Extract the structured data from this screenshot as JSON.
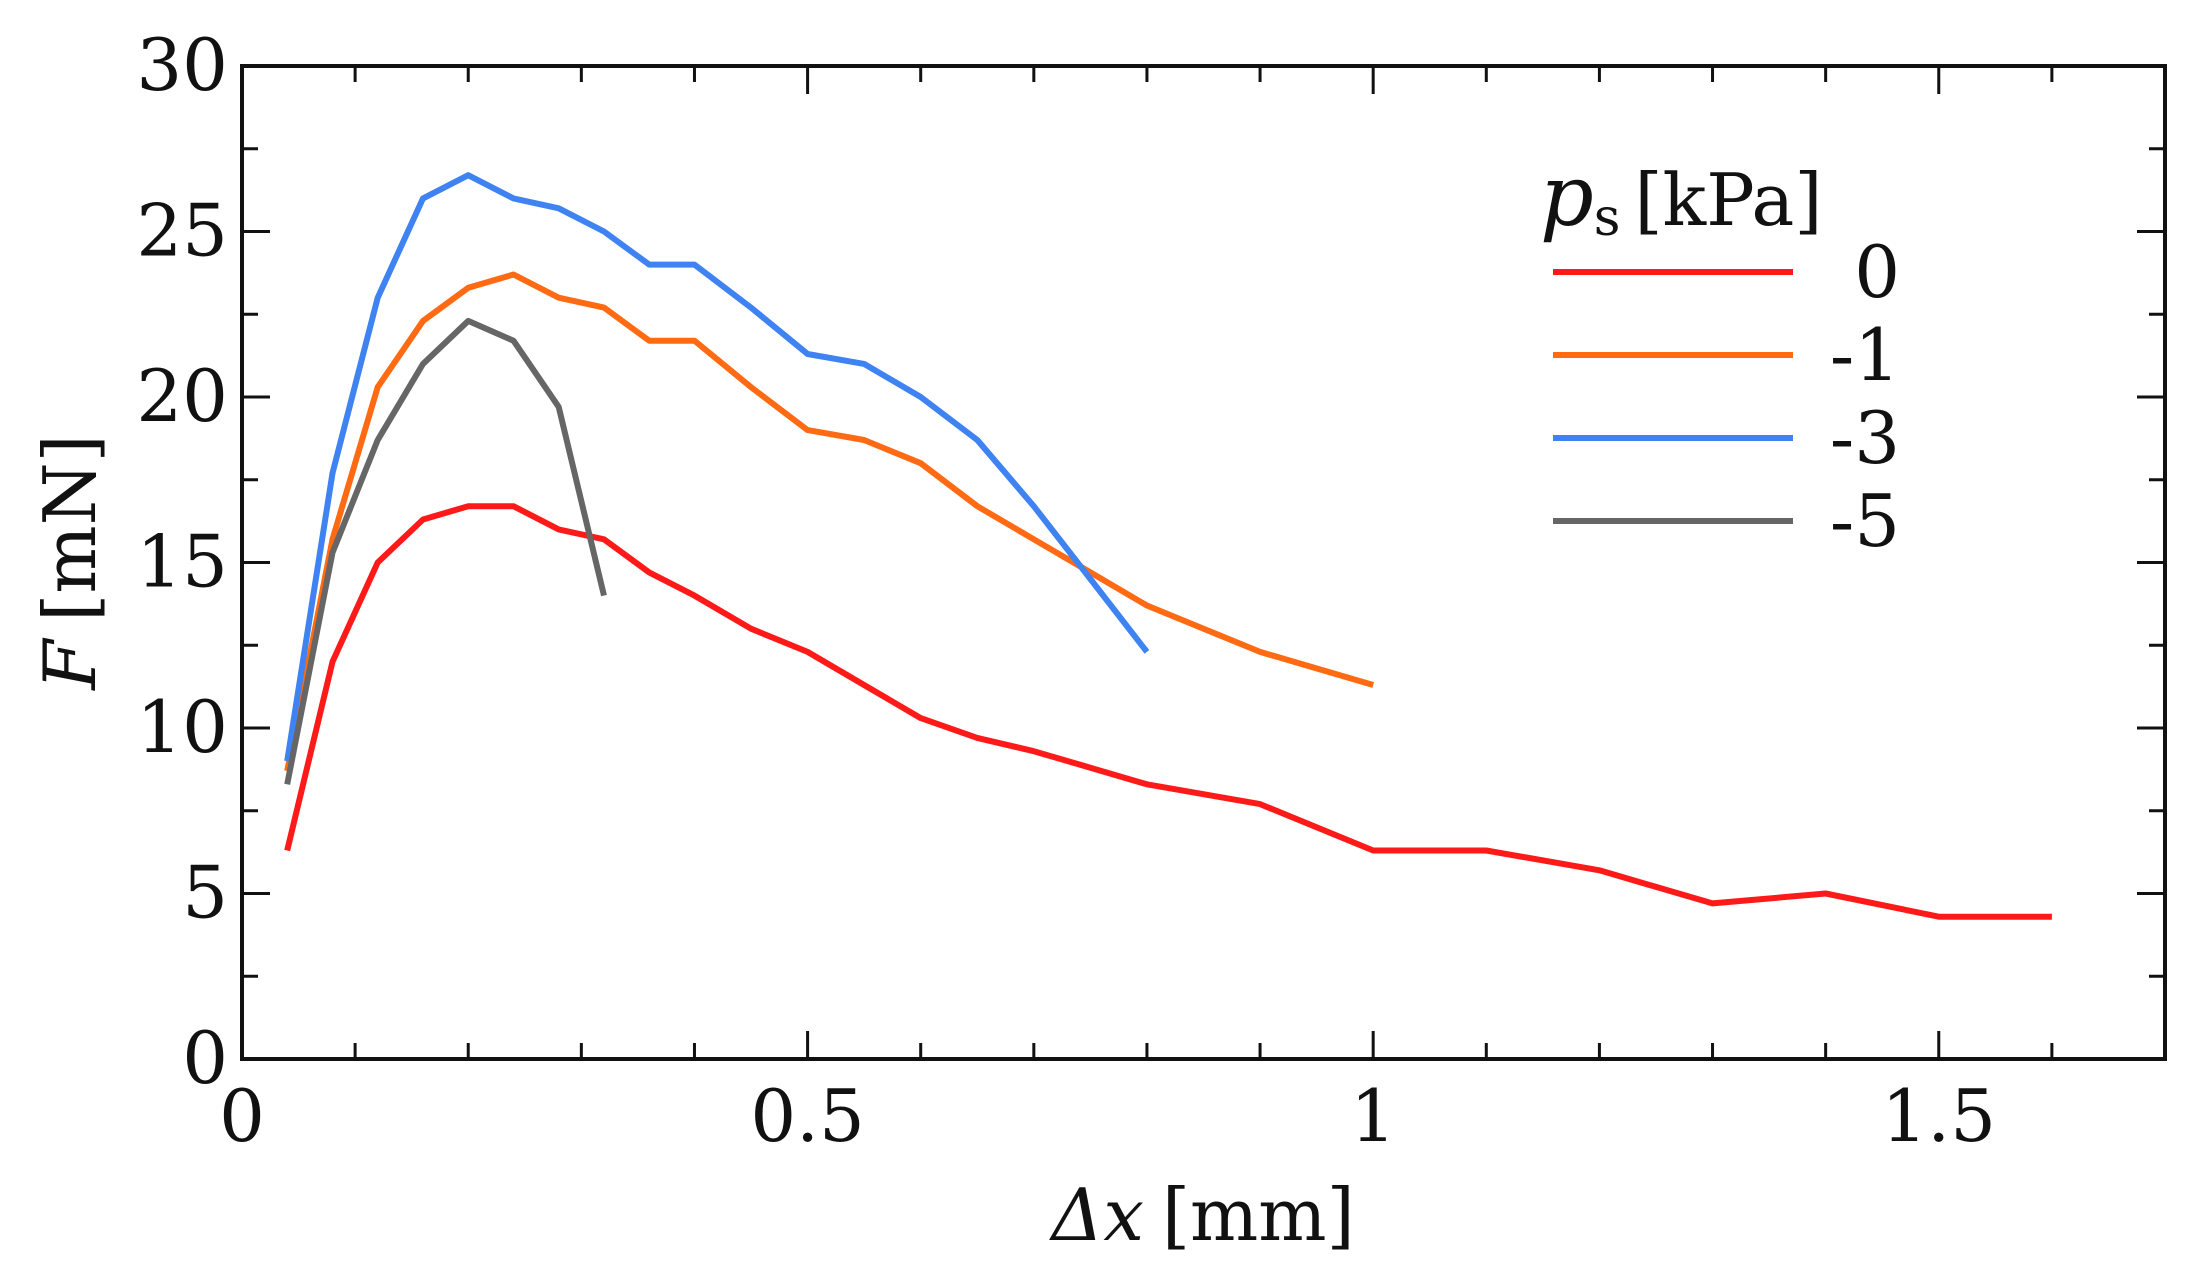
{
  "chart_data": {
    "type": "line",
    "title": "",
    "xlabel": {
      "symbol": "Δx",
      "unit": "[mm]"
    },
    "ylabel": {
      "symbol": "F",
      "unit": "[mN]"
    },
    "xlim": [
      0,
      1.7
    ],
    "ylim": [
      0,
      30
    ],
    "x_ticks": [
      0,
      0.5,
      1,
      1.5
    ],
    "x_tick_labels": [
      "0",
      "0.5",
      "1",
      "1.5"
    ],
    "x_minor_ticks": [
      0.1,
      0.2,
      0.3,
      0.4,
      0.6,
      0.7,
      0.8,
      0.9,
      1.1,
      1.2,
      1.3,
      1.4,
      1.6
    ],
    "y_ticks": [
      0,
      5,
      10,
      15,
      20,
      25,
      30
    ],
    "y_tick_labels": [
      "0",
      "5",
      "10",
      "15",
      "20",
      "25",
      "30"
    ],
    "y_minor_ticks": [
      2.5,
      7.5,
      12.5,
      17.5,
      22.5,
      27.5
    ],
    "grid": false,
    "legend": {
      "title_symbol": "p",
      "title_subscript": "s",
      "title_unit": "[kPa]",
      "placement": "top-right"
    },
    "series": [
      {
        "name": "0",
        "color": "#ff1a1a",
        "x": [
          0.04,
          0.08,
          0.12,
          0.16,
          0.2,
          0.24,
          0.28,
          0.32,
          0.36,
          0.4,
          0.45,
          0.5,
          0.55,
          0.6,
          0.65,
          0.7,
          0.75,
          0.8,
          0.9,
          1.0,
          1.1,
          1.2,
          1.3,
          1.4,
          1.5,
          1.6
        ],
        "values": [
          6.3,
          12.0,
          15.0,
          16.3,
          16.7,
          16.7,
          16.0,
          15.7,
          14.7,
          14.0,
          13.0,
          12.3,
          11.3,
          10.3,
          9.7,
          9.3,
          8.8,
          8.3,
          7.7,
          6.3,
          6.3,
          5.7,
          4.7,
          5.0,
          4.3,
          4.3
        ]
      },
      {
        "name": "-1",
        "color": "#ff6a13",
        "x": [
          0.04,
          0.08,
          0.12,
          0.16,
          0.2,
          0.24,
          0.28,
          0.32,
          0.36,
          0.4,
          0.45,
          0.5,
          0.55,
          0.6,
          0.65,
          0.7,
          0.75,
          0.8,
          0.9,
          1.0
        ],
        "values": [
          8.7,
          15.7,
          20.3,
          22.3,
          23.3,
          23.7,
          23.0,
          22.7,
          21.7,
          21.7,
          20.3,
          19.0,
          18.7,
          18.0,
          16.7,
          15.7,
          14.7,
          13.7,
          12.3,
          11.3
        ]
      },
      {
        "name": "-3",
        "color": "#3f83f2",
        "x": [
          0.04,
          0.08,
          0.12,
          0.16,
          0.2,
          0.24,
          0.28,
          0.32,
          0.36,
          0.4,
          0.45,
          0.5,
          0.55,
          0.6,
          0.65,
          0.7,
          0.75,
          0.8
        ],
        "values": [
          9.0,
          17.7,
          23.0,
          26.0,
          26.7,
          26.0,
          25.7,
          25.0,
          24.0,
          24.0,
          22.7,
          21.3,
          21.0,
          20.0,
          18.7,
          16.7,
          14.5,
          12.3
        ]
      },
      {
        "name": "-5",
        "color": "#666666",
        "x": [
          0.04,
          0.08,
          0.12,
          0.16,
          0.2,
          0.24,
          0.28,
          0.32
        ],
        "values": [
          8.3,
          15.3,
          18.7,
          21.0,
          22.3,
          21.7,
          19.7,
          14.0
        ]
      }
    ]
  }
}
